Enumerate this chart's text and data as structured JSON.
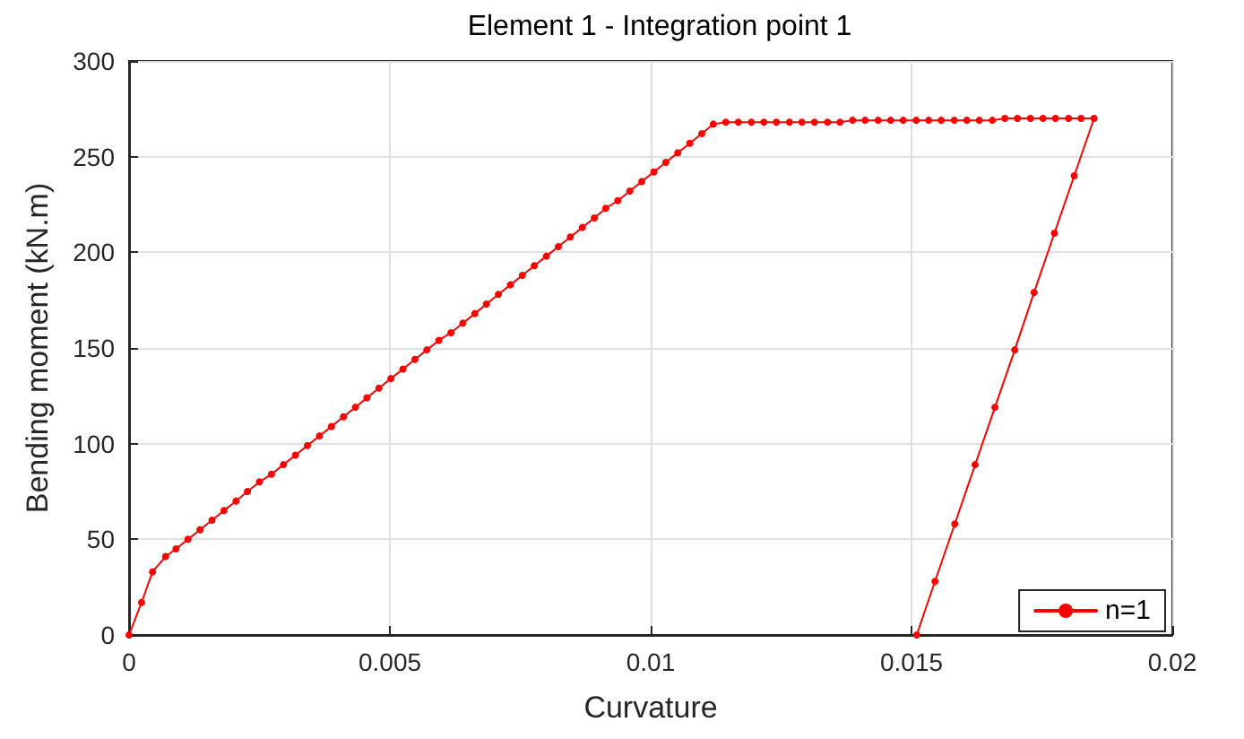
{
  "chart_data": {
    "type": "line",
    "title": "Element 1 - Integration point 1",
    "xlabel": "Curvature",
    "ylabel": "Bending moment (kN.m)",
    "xlim": [
      0,
      0.02
    ],
    "xticks": [
      0,
      0.005,
      0.01,
      0.015,
      0.02
    ],
    "ylim": [
      0,
      300
    ],
    "yticks": [
      0,
      50,
      100,
      150,
      200,
      250,
      300
    ],
    "grid": true,
    "legend": "bottom right",
    "marker": "circle",
    "line_style": "solid",
    "series": [
      {
        "name": "n=1",
        "color": "#ff0000",
        "x": [
          0,
          0.00024,
          0.00045,
          0.0007,
          0.0009,
          0.00113,
          0.00136,
          0.00159,
          0.00182,
          0.00205,
          0.00227,
          0.0025,
          0.00273,
          0.00296,
          0.00319,
          0.00342,
          0.00365,
          0.00388,
          0.00411,
          0.00434,
          0.00456,
          0.00479,
          0.00502,
          0.00525,
          0.00548,
          0.00571,
          0.00594,
          0.00617,
          0.0064,
          0.00663,
          0.00685,
          0.00708,
          0.00731,
          0.00754,
          0.00777,
          0.008,
          0.00823,
          0.00846,
          0.00869,
          0.00892,
          0.00914,
          0.00937,
          0.0096,
          0.00983,
          0.01006,
          0.01029,
          0.01052,
          0.01075,
          0.01098,
          0.0112,
          0.01144,
          0.01168,
          0.01193,
          0.01217,
          0.01241,
          0.01266,
          0.0129,
          0.01314,
          0.01339,
          0.01363,
          0.01387,
          0.01411,
          0.01436,
          0.0146,
          0.01484,
          0.01509,
          0.01533,
          0.01557,
          0.01582,
          0.01606,
          0.0163,
          0.01655,
          0.01679,
          0.01703,
          0.01728,
          0.01752,
          0.01776,
          0.01801,
          0.01825,
          0.0185,
          0.01812,
          0.01774,
          0.01735,
          0.01698,
          0.0166,
          0.01622,
          0.01583,
          0.01545,
          0.0151
        ],
        "values": [
          0,
          17,
          33,
          41,
          45,
          50,
          55,
          60,
          65,
          70,
          75,
          80,
          84,
          89,
          94,
          99,
          104,
          109,
          114,
          119,
          124,
          129,
          134,
          139,
          144,
          149,
          154,
          158,
          163,
          168,
          173,
          178,
          183,
          188,
          193,
          198,
          203,
          208,
          213,
          218,
          223,
          227,
          232,
          237,
          242,
          247,
          252,
          257,
          262,
          267,
          268,
          268,
          268,
          268,
          268,
          268,
          268,
          268,
          268,
          268,
          269,
          269,
          269,
          269,
          269,
          269,
          269,
          269,
          269,
          269,
          269,
          269,
          270,
          270,
          270,
          270,
          270,
          270,
          270,
          270,
          240,
          210,
          179,
          149,
          119,
          89,
          58,
          28,
          0
        ]
      }
    ]
  }
}
